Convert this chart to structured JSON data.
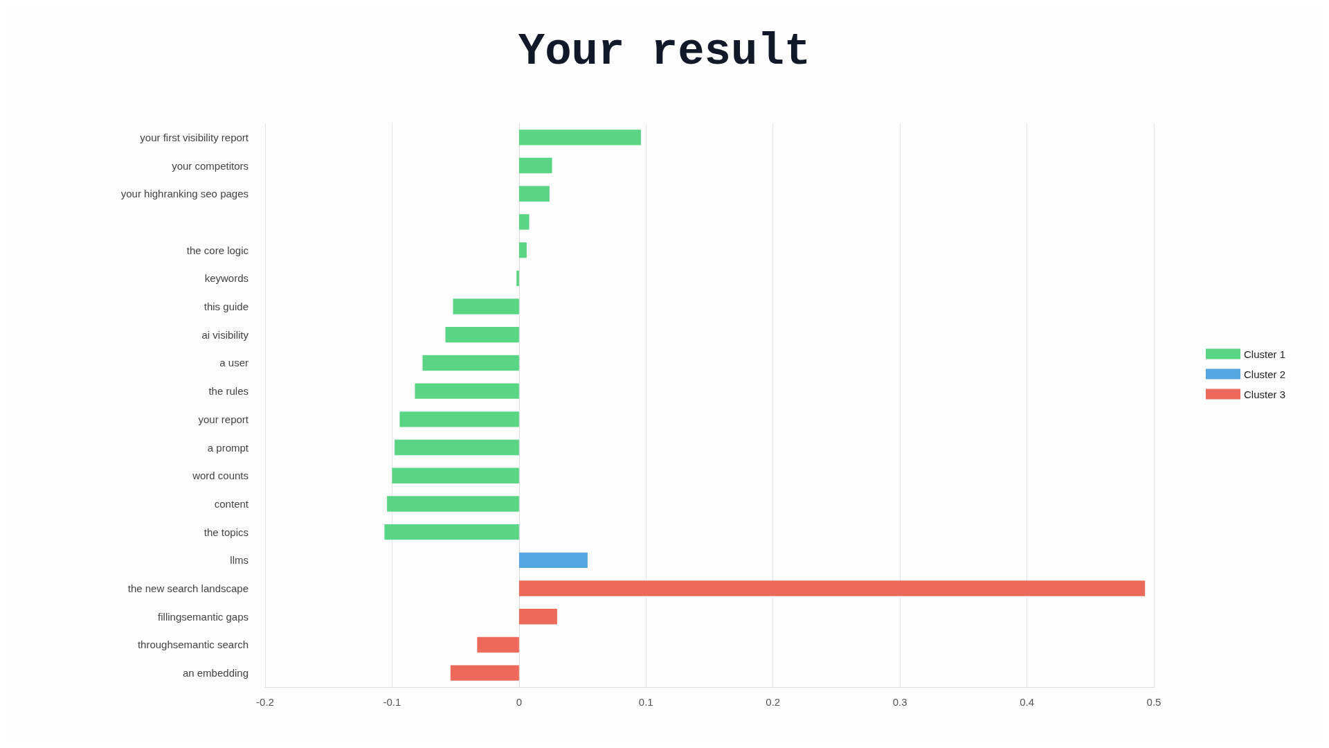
{
  "chart_data": {
    "type": "bar",
    "title": "Your result",
    "orientation": "horizontal",
    "stacked": true,
    "categories": [
      "your first visibility report",
      "your competitors",
      "your highranking seo pages",
      null,
      "the core logic",
      "keywords",
      "this guide",
      "ai visibility",
      "a user",
      "the rules",
      "your report",
      "a prompt",
      "word counts",
      "content",
      "the topics",
      "llms",
      "the new search landscape",
      "fillingsemantic gaps",
      "throughsemantic search",
      "an embedding"
    ],
    "series": [
      {
        "name": "Cluster 1",
        "color": "#5ad585",
        "values": [
          0.096,
          0.026,
          0.024,
          0.008,
          0.006,
          -0.002,
          -0.052,
          -0.058,
          -0.076,
          -0.082,
          -0.094,
          -0.098,
          -0.1,
          -0.104,
          -0.106,
          null,
          null,
          null,
          null,
          null
        ]
      },
      {
        "name": "Cluster 2",
        "color": "#56a7e1",
        "values": [
          null,
          null,
          null,
          null,
          null,
          null,
          null,
          null,
          null,
          null,
          null,
          null,
          null,
          null,
          null,
          0.054,
          null,
          null,
          null,
          null
        ]
      },
      {
        "name": "Cluster 3",
        "color": "#ec6a5c",
        "values": [
          null,
          null,
          null,
          null,
          null,
          null,
          null,
          null,
          null,
          null,
          null,
          null,
          null,
          null,
          null,
          null,
          0.493,
          0.03,
          -0.033,
          -0.054
        ]
      }
    ],
    "xlim": [
      -0.2,
      0.5
    ],
    "xticks": [
      -0.2,
      -0.1,
      0,
      0.1,
      0.2,
      0.3,
      0.4,
      0.5
    ],
    "grid": "x",
    "legend": "right"
  }
}
